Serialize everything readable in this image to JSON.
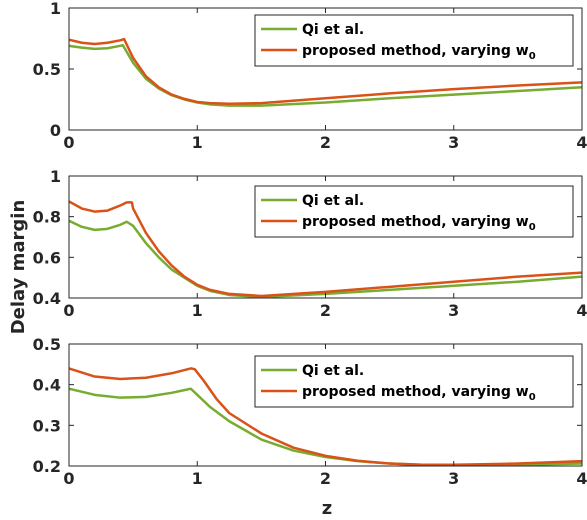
{
  "chart_data": [
    {
      "type": "line",
      "xlim": [
        0,
        4
      ],
      "ylim": [
        0,
        1
      ],
      "xticks": [
        "0",
        "1",
        "2",
        "3",
        "4"
      ],
      "yticks": [
        "0",
        "0.5",
        "1"
      ],
      "legend_position": "top-right",
      "series": [
        {
          "name": "Qi et al.",
          "color": "#77AC30",
          "x": [
            0,
            0.1,
            0.2,
            0.3,
            0.4,
            0.42,
            0.5,
            0.6,
            0.7,
            0.8,
            0.9,
            1.0,
            1.1,
            1.25,
            1.5,
            2.0,
            2.5,
            3.0,
            3.5,
            4.0
          ],
          "y": [
            0.69,
            0.675,
            0.665,
            0.67,
            0.69,
            0.695,
            0.55,
            0.42,
            0.34,
            0.285,
            0.25,
            0.225,
            0.21,
            0.2,
            0.2,
            0.225,
            0.26,
            0.29,
            0.32,
            0.35
          ]
        },
        {
          "name": "proposed method, varying w0",
          "label_main": "proposed method, varying w",
          "label_sub": "0",
          "color": "#D95319",
          "x": [
            0,
            0.1,
            0.2,
            0.3,
            0.4,
            0.43,
            0.5,
            0.6,
            0.7,
            0.8,
            0.9,
            1.0,
            1.1,
            1.25,
            1.5,
            2.0,
            2.5,
            3.0,
            3.5,
            4.0
          ],
          "y": [
            0.74,
            0.715,
            0.705,
            0.715,
            0.735,
            0.745,
            0.59,
            0.44,
            0.35,
            0.29,
            0.255,
            0.23,
            0.22,
            0.215,
            0.22,
            0.26,
            0.3,
            0.335,
            0.365,
            0.39
          ]
        }
      ]
    },
    {
      "type": "line",
      "xlim": [
        0,
        4
      ],
      "ylim": [
        0.4,
        1
      ],
      "xticks": [
        "0",
        "1",
        "2",
        "3",
        "4"
      ],
      "yticks": [
        "0.4",
        "0.6",
        "0.8",
        "1"
      ],
      "ylabel": "Delay margin",
      "legend_position": "top-right",
      "series": [
        {
          "name": "Qi et al.",
          "color": "#77AC30",
          "x": [
            0,
            0.1,
            0.2,
            0.3,
            0.4,
            0.45,
            0.5,
            0.6,
            0.7,
            0.8,
            0.9,
            1.0,
            1.1,
            1.25,
            1.5,
            2.0,
            2.5,
            3.0,
            3.5,
            4.0
          ],
          "y": [
            0.78,
            0.75,
            0.735,
            0.74,
            0.76,
            0.775,
            0.755,
            0.67,
            0.6,
            0.54,
            0.5,
            0.46,
            0.435,
            0.415,
            0.405,
            0.42,
            0.44,
            0.46,
            0.48,
            0.505
          ]
        },
        {
          "name": "proposed method, varying w0",
          "label_main": "proposed method, varying w",
          "label_sub": "0",
          "color": "#D95319",
          "x": [
            0,
            0.1,
            0.2,
            0.3,
            0.4,
            0.45,
            0.49,
            0.5,
            0.6,
            0.7,
            0.8,
            0.9,
            1.0,
            1.1,
            1.25,
            1.5,
            2.0,
            2.5,
            3.0,
            3.5,
            4.0
          ],
          "y": [
            0.875,
            0.84,
            0.825,
            0.83,
            0.855,
            0.87,
            0.87,
            0.84,
            0.72,
            0.63,
            0.56,
            0.505,
            0.465,
            0.44,
            0.42,
            0.41,
            0.43,
            0.455,
            0.48,
            0.505,
            0.525
          ]
        }
      ]
    },
    {
      "type": "line",
      "xlim": [
        0,
        4
      ],
      "ylim": [
        0.2,
        0.5
      ],
      "xticks": [
        "0",
        "1",
        "2",
        "3",
        "4"
      ],
      "yticks": [
        "0.2",
        "0.3",
        "0.4",
        "0.5"
      ],
      "xlabel": "z",
      "legend_position": "top-right",
      "series": [
        {
          "name": "Qi et al.",
          "color": "#77AC30",
          "x": [
            0,
            0.2,
            0.4,
            0.6,
            0.8,
            0.95,
            1.0,
            1.1,
            1.25,
            1.5,
            1.75,
            2.0,
            2.25,
            2.5,
            2.75,
            3.0,
            3.5,
            4.0
          ],
          "y": [
            0.39,
            0.375,
            0.368,
            0.37,
            0.38,
            0.39,
            0.375,
            0.345,
            0.31,
            0.265,
            0.238,
            0.222,
            0.212,
            0.206,
            0.203,
            0.202,
            0.203,
            0.206
          ]
        },
        {
          "name": "proposed method, varying w0",
          "label_main": "proposed method, varying w",
          "label_sub": "0",
          "color": "#D95319",
          "x": [
            0,
            0.2,
            0.4,
            0.6,
            0.8,
            0.95,
            0.98,
            1.05,
            1.15,
            1.25,
            1.5,
            1.75,
            2.0,
            2.25,
            2.5,
            2.75,
            3.0,
            3.5,
            4.0
          ],
          "y": [
            0.44,
            0.42,
            0.414,
            0.417,
            0.428,
            0.44,
            0.438,
            0.41,
            0.365,
            0.33,
            0.28,
            0.245,
            0.225,
            0.213,
            0.206,
            0.203,
            0.203,
            0.206,
            0.212
          ]
        }
      ]
    }
  ]
}
